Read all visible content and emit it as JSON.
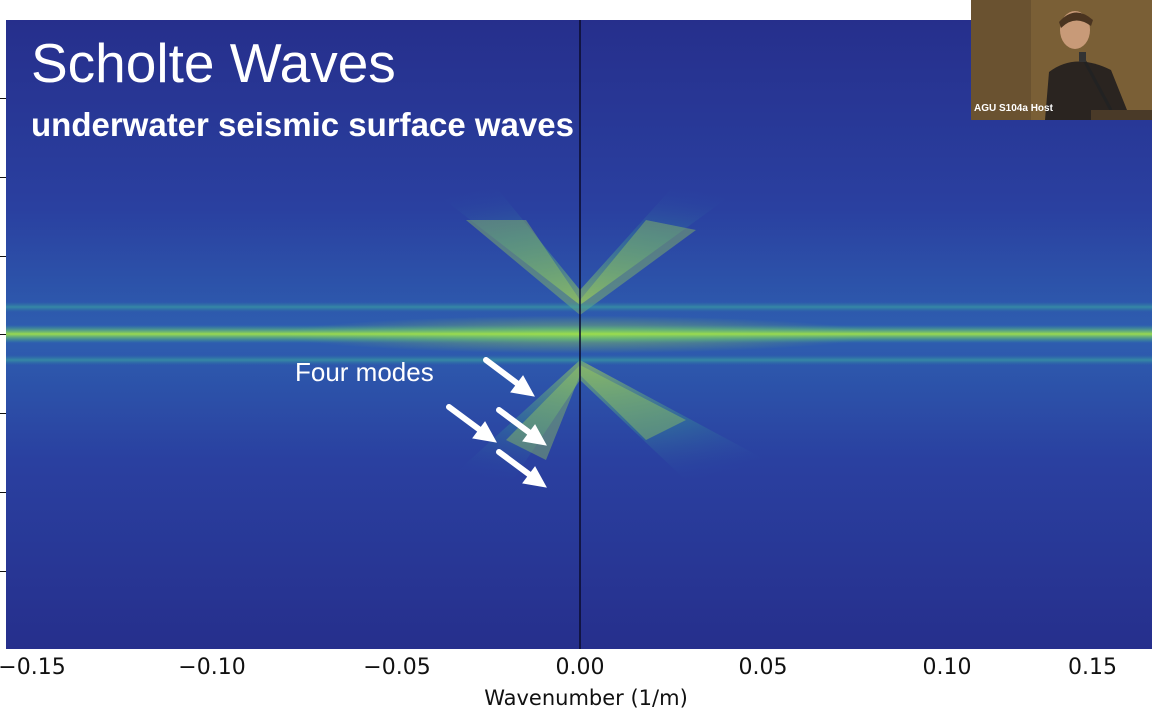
{
  "slide": {
    "title": "Scholte Waves",
    "subtitle": "underwater seismic surface waves",
    "annotation": "Four modes"
  },
  "chart_data": {
    "type": "heatmap",
    "xlabel": "Wavenumber (1/m)",
    "x_ticks": [
      "−0.15",
      "−0.10",
      "−0.05",
      "0.00",
      "0.05",
      "0.10",
      "0.15"
    ],
    "x_tick_values": [
      -0.15,
      -0.1,
      -0.05,
      0.0,
      0.05,
      0.1,
      0.15
    ],
    "xlim": [
      -0.15,
      0.15
    ],
    "colormap": "viridis",
    "colors": {
      "background": "#26318c",
      "peak": "#b4e63c",
      "axis_line": "#0a0a2a"
    }
  },
  "webcam": {
    "label": "AGU S104a Host"
  },
  "icons": [
    "arrow-icon",
    "speaker-video"
  ]
}
